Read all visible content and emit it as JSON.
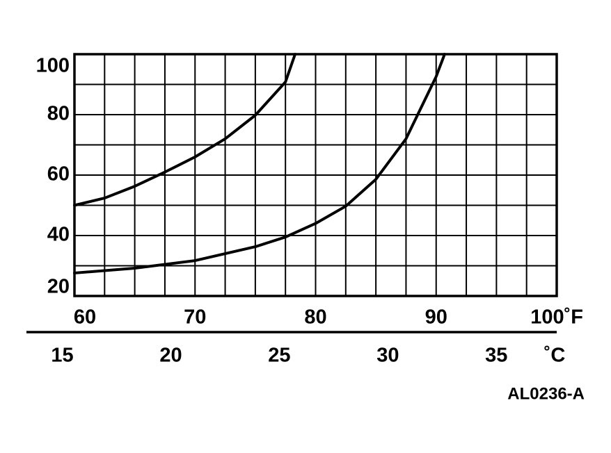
{
  "chart_data": {
    "type": "line",
    "x_unit_label": "˚C",
    "annotation": "AL0236-A",
    "xlim": [
      60,
      100
    ],
    "xticks": [
      60,
      70,
      80,
      90,
      {
        "value": 100,
        "label": "100˚F"
      }
    ],
    "xgrid": [
      60,
      62.5,
      65,
      67.5,
      70,
      72.5,
      75,
      77.5,
      80,
      82.5,
      85,
      87.5,
      90,
      92.5,
      95,
      97.5,
      100
    ],
    "x2lim": [
      15.56,
      37.78
    ],
    "x2ticks": [
      15,
      20,
      25,
      30,
      35
    ],
    "ylim": [
      20,
      100
    ],
    "yticks": [
      20,
      40,
      60,
      80,
      100
    ],
    "ygrid": [
      20,
      30,
      40,
      50,
      60,
      70,
      80,
      90,
      100
    ],
    "grid": true,
    "series": [
      {
        "color": "#000000",
        "x": [
          60,
          62.5,
          65,
          67.5,
          70,
          72.5,
          75,
          77.5,
          78.3
        ],
        "values": [
          50,
          52.4,
          56.3,
          61,
          66,
          72,
          79.8,
          90.8,
          100
        ]
      },
      {
        "color": "#000000",
        "x": [
          60,
          65,
          70,
          75,
          77.5,
          80,
          82.5,
          85,
          87.5,
          90,
          90.7
        ],
        "values": [
          27.6,
          29.2,
          31.7,
          36.3,
          39.5,
          44,
          49.7,
          58.6,
          72,
          92.6,
          100
        ]
      }
    ]
  }
}
